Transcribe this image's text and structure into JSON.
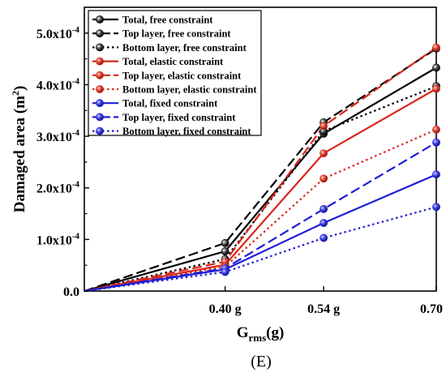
{
  "chart_data": {
    "type": "line",
    "panel_label": "(E)",
    "xlabel": {
      "main": "G",
      "sub": "rms",
      "unit": "(g)"
    },
    "ylabel": {
      "main": "Damaged area (m",
      "sup": "2",
      "end": ")"
    },
    "x_categories": [
      "",
      "0.40 g",
      "0.54 g",
      "0.70 g"
    ],
    "xlim": [
      0.2,
      0.7
    ],
    "ylim": [
      0,
      0.00055
    ],
    "y_ticks": [
      {
        "value": 0,
        "label": "0.0",
        "sup": ""
      },
      {
        "value": 0.0001,
        "label": "1.0x10",
        "sup": "-4"
      },
      {
        "value": 0.0002,
        "label": "2.0x10",
        "sup": "-4"
      },
      {
        "value": 0.0003,
        "label": "3.0x10",
        "sup": "-4"
      },
      {
        "value": 0.0004,
        "label": "4.0x10",
        "sup": "-4"
      },
      {
        "value": 0.0005,
        "label": "5.0x10",
        "sup": "-4"
      }
    ],
    "x": [
      0.2,
      0.4,
      0.54,
      0.7
    ],
    "legend_position": "top-left",
    "series": [
      {
        "name": "Total, free constraint",
        "color": "#000000",
        "style": "solid",
        "values": [
          0,
          7.7e-05,
          0.000305,
          0.000433
        ]
      },
      {
        "name": "Top layer, free constraint",
        "color": "#000000",
        "style": "dashed",
        "values": [
          0,
          9.3e-05,
          0.000327,
          0.00047
        ]
      },
      {
        "name": "Bottom layer, free constraint",
        "color": "#000000",
        "style": "dotted",
        "values": [
          0,
          6.2e-05,
          0.00031,
          0.000397
        ]
      },
      {
        "name": "Total, elastic constraint",
        "color": "#d9261c",
        "style": "solid",
        "values": [
          0,
          5.1e-05,
          0.000267,
          0.000392
        ]
      },
      {
        "name": "Top layer, elastic constraint",
        "color": "#d9261c",
        "style": "dashed",
        "values": [
          0,
          5.7e-05,
          0.00032,
          0.000472
        ]
      },
      {
        "name": "Bottom layer, elastic constraint",
        "color": "#d9261c",
        "style": "dotted",
        "values": [
          0,
          4.7e-05,
          0.000218,
          0.000313
        ]
      },
      {
        "name": "Total, fixed constraint",
        "color": "#1f1fd6",
        "style": "solid",
        "values": [
          0,
          4.2e-05,
          0.000132,
          0.000226
        ]
      },
      {
        "name": "Top layer, fixed constraint",
        "color": "#1f1fd6",
        "style": "dashed",
        "values": [
          0,
          4.4e-05,
          0.000159,
          0.000288
        ]
      },
      {
        "name": "Bottom layer, fixed constraint",
        "color": "#1f1fd6",
        "style": "dotted",
        "values": [
          0,
          3.7e-05,
          0.000103,
          0.000163
        ]
      }
    ]
  }
}
